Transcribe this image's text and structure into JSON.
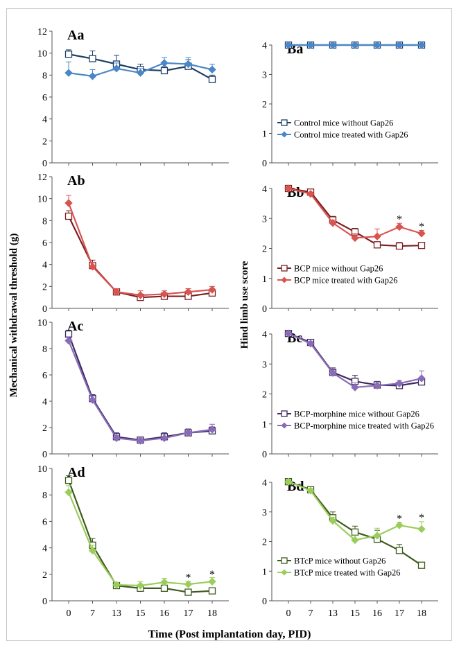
{
  "figure": {
    "xlabel": "Time (Post implantation day, PID)",
    "ylabel_left": "Mechanical withdrawal threshold (g)",
    "ylabel_right": "Hind limb use score"
  },
  "chart_data": [
    {
      "id": "Aa",
      "panel_label": "Aa",
      "type": "line",
      "categories": [
        "0",
        "7",
        "13",
        "15",
        "16",
        "17",
        "18"
      ],
      "ylim": [
        0,
        12
      ],
      "yticks": [
        0,
        2,
        4,
        6,
        8,
        10,
        12
      ],
      "show_x_ticks": false,
      "legend": "none",
      "series": [
        {
          "name": "",
          "color": "#1f3f66",
          "marker": "open-square",
          "values": [
            9.9,
            9.5,
            9.0,
            8.5,
            8.4,
            8.8,
            7.6
          ],
          "errors": [
            0.4,
            0.7,
            0.8,
            0.5,
            0.4,
            0.6,
            0.4
          ]
        },
        {
          "name": "",
          "color": "#4a86c8",
          "marker": "filled-diamond",
          "values": [
            8.2,
            7.9,
            8.6,
            8.2,
            9.1,
            9.0,
            8.5
          ],
          "errors": [
            1.0,
            0.6,
            0.5,
            0.4,
            0.5,
            0.6,
            0.5
          ]
        }
      ],
      "significance": []
    },
    {
      "id": "Ba",
      "panel_label": "Ba",
      "type": "line",
      "categories": [
        "0",
        "7",
        "13",
        "15",
        "16",
        "17",
        "18"
      ],
      "ylim": [
        0,
        4
      ],
      "yticks": [
        0,
        1,
        2,
        3,
        4
      ],
      "show_x_ticks": false,
      "legend": "lower-left",
      "series": [
        {
          "name": "Control mice  without Gap26",
          "color": "#1f3f66",
          "marker": "open-square",
          "values": [
            4,
            4,
            4,
            4,
            4,
            4,
            4
          ],
          "errors": [
            0,
            0,
            0,
            0,
            0,
            0,
            0
          ]
        },
        {
          "name": "Control mice treated with Gap26",
          "color": "#4a86c8",
          "marker": "filled-diamond",
          "values": [
            4,
            4,
            4,
            4,
            4,
            4,
            4
          ],
          "errors": [
            0,
            0,
            0,
            0,
            0,
            0,
            0
          ]
        }
      ],
      "significance": []
    },
    {
      "id": "Ab",
      "panel_label": "Ab",
      "type": "line",
      "categories": [
        "0",
        "7",
        "13",
        "15",
        "16",
        "17",
        "18"
      ],
      "ylim": [
        0,
        12
      ],
      "yticks": [
        0,
        2,
        4,
        6,
        8,
        10,
        12
      ],
      "show_x_ticks": false,
      "legend": "none",
      "series": [
        {
          "name": "",
          "color": "#7a1f22",
          "marker": "open-square",
          "values": [
            8.4,
            3.9,
            1.5,
            1.0,
            1.1,
            1.1,
            1.4
          ],
          "errors": [
            0.5,
            0.5,
            0.3,
            0.3,
            0.3,
            0.3,
            0.3
          ]
        },
        {
          "name": "",
          "color": "#d9534f",
          "marker": "filled-diamond",
          "values": [
            9.6,
            3.8,
            1.5,
            1.2,
            1.3,
            1.5,
            1.7
          ],
          "errors": [
            0.7,
            0.4,
            0.3,
            0.4,
            0.3,
            0.3,
            0.3
          ]
        }
      ],
      "significance": []
    },
    {
      "id": "Bb",
      "panel_label": "Bb",
      "type": "line",
      "categories": [
        "0",
        "7",
        "13",
        "15",
        "16",
        "17",
        "18"
      ],
      "ylim": [
        0,
        4
      ],
      "yticks": [
        0,
        1,
        2,
        3,
        4
      ],
      "show_x_ticks": false,
      "legend": "lower-left",
      "series": [
        {
          "name": "BCP mice  without Gap26",
          "color": "#7a1f22",
          "marker": "open-square",
          "values": [
            4.0,
            3.88,
            2.95,
            2.55,
            2.12,
            2.08,
            2.1
          ],
          "errors": [
            0.05,
            0.05,
            0.12,
            0.12,
            0.1,
            0.12,
            0.06
          ]
        },
        {
          "name": "BCP mice treated with Gap26",
          "color": "#d9534f",
          "marker": "filled-diamond",
          "values": [
            4.0,
            3.82,
            2.85,
            2.35,
            2.4,
            2.72,
            2.5
          ],
          "errors": [
            0.05,
            0.05,
            0.1,
            0.15,
            0.25,
            0.12,
            0.1
          ]
        }
      ],
      "significance": [
        {
          "x": "17",
          "text": "*",
          "y": 2.95
        },
        {
          "x": "18",
          "text": "*",
          "y": 2.7
        }
      ]
    },
    {
      "id": "Ac",
      "panel_label": "Ac",
      "type": "line",
      "categories": [
        "0",
        "7",
        "13",
        "15",
        "16",
        "17",
        "18"
      ],
      "ylim": [
        0,
        10
      ],
      "yticks": [
        0,
        2,
        4,
        6,
        8,
        10
      ],
      "show_x_ticks": false,
      "legend": "none",
      "series": [
        {
          "name": "",
          "color": "#3b2a5c",
          "marker": "open-square",
          "values": [
            9.1,
            4.2,
            1.3,
            1.05,
            1.3,
            1.6,
            1.75
          ],
          "errors": [
            0.3,
            0.3,
            0.3,
            0.2,
            0.3,
            0.3,
            0.3
          ]
        },
        {
          "name": "",
          "color": "#8a6bb8",
          "marker": "filled-diamond",
          "values": [
            8.6,
            4.1,
            1.2,
            1.0,
            1.2,
            1.6,
            1.85
          ],
          "errors": [
            0.3,
            0.3,
            0.2,
            0.2,
            0.3,
            0.3,
            0.4
          ]
        }
      ],
      "significance": []
    },
    {
      "id": "Bc",
      "panel_label": "Bc",
      "type": "line",
      "categories": [
        "0",
        "7",
        "13",
        "15",
        "16",
        "17",
        "18"
      ],
      "ylim": [
        0,
        4
      ],
      "yticks": [
        0,
        1,
        2,
        3,
        4
      ],
      "show_x_ticks": false,
      "legend": "lower-left",
      "series": [
        {
          "name": "BCP-morphine mice  without Gap26",
          "color": "#3b2a5c",
          "marker": "open-square",
          "values": [
            4.02,
            3.72,
            2.72,
            2.42,
            2.3,
            2.28,
            2.4
          ],
          "errors": [
            0.06,
            0.07,
            0.15,
            0.2,
            0.12,
            0.1,
            0.1
          ]
        },
        {
          "name": "BCP-morphine mice treated with Gap26",
          "color": "#8a6bb8",
          "marker": "filled-diamond",
          "values": [
            4.02,
            3.68,
            2.7,
            2.22,
            2.28,
            2.35,
            2.52
          ],
          "errors": [
            0.06,
            0.07,
            0.1,
            0.15,
            0.12,
            0.1,
            0.25
          ]
        }
      ],
      "significance": []
    },
    {
      "id": "Ad",
      "panel_label": "Ad",
      "type": "line",
      "categories": [
        "0",
        "7",
        "13",
        "15",
        "16",
        "17",
        "18"
      ],
      "ylim": [
        0,
        10
      ],
      "yticks": [
        0,
        2,
        4,
        6,
        8,
        10
      ],
      "show_x_ticks": true,
      "legend": "none",
      "series": [
        {
          "name": "",
          "color": "#3f5a1f",
          "marker": "open-square",
          "values": [
            9.1,
            4.2,
            1.15,
            0.95,
            0.95,
            0.65,
            0.75
          ],
          "errors": [
            0.35,
            0.5,
            0.2,
            0.2,
            0.2,
            0.15,
            0.2
          ]
        },
        {
          "name": "",
          "color": "#9acd5a",
          "marker": "filled-diamond",
          "values": [
            8.2,
            3.8,
            1.2,
            1.15,
            1.4,
            1.25,
            1.45
          ],
          "errors": [
            0.5,
            0.4,
            0.2,
            0.3,
            0.3,
            0.2,
            0.3
          ]
        }
      ],
      "significance": [
        {
          "x": "17",
          "text": "*",
          "y": 1.7
        },
        {
          "x": "18",
          "text": "*",
          "y": 1.95
        }
      ]
    },
    {
      "id": "Bd",
      "panel_label": "Bd",
      "type": "line",
      "categories": [
        "0",
        "7",
        "13",
        "15",
        "16",
        "17",
        "18"
      ],
      "ylim": [
        0,
        4
      ],
      "yticks": [
        0,
        1,
        2,
        3,
        4
      ],
      "show_x_ticks": true,
      "legend": "lower-left",
      "series": [
        {
          "name": "BTcP mice  without Gap26",
          "color": "#3f5a1f",
          "marker": "open-square",
          "values": [
            4.02,
            3.75,
            2.8,
            2.32,
            2.08,
            1.7,
            1.2
          ],
          "errors": [
            0.05,
            0.06,
            0.2,
            0.2,
            0.3,
            0.2,
            0.06
          ]
        },
        {
          "name": "BTcP mice treated with Gap26",
          "color": "#9acd5a",
          "marker": "filled-diamond",
          "values": [
            4.02,
            3.72,
            2.7,
            2.05,
            2.2,
            2.55,
            2.42
          ],
          "errors": [
            0.05,
            0.06,
            0.12,
            0.15,
            0.25,
            0.1,
            0.25
          ]
        }
      ],
      "significance": [
        {
          "x": "17",
          "text": "*",
          "y": 2.75
        },
        {
          "x": "18",
          "text": "*",
          "y": 2.78
        }
      ]
    }
  ]
}
